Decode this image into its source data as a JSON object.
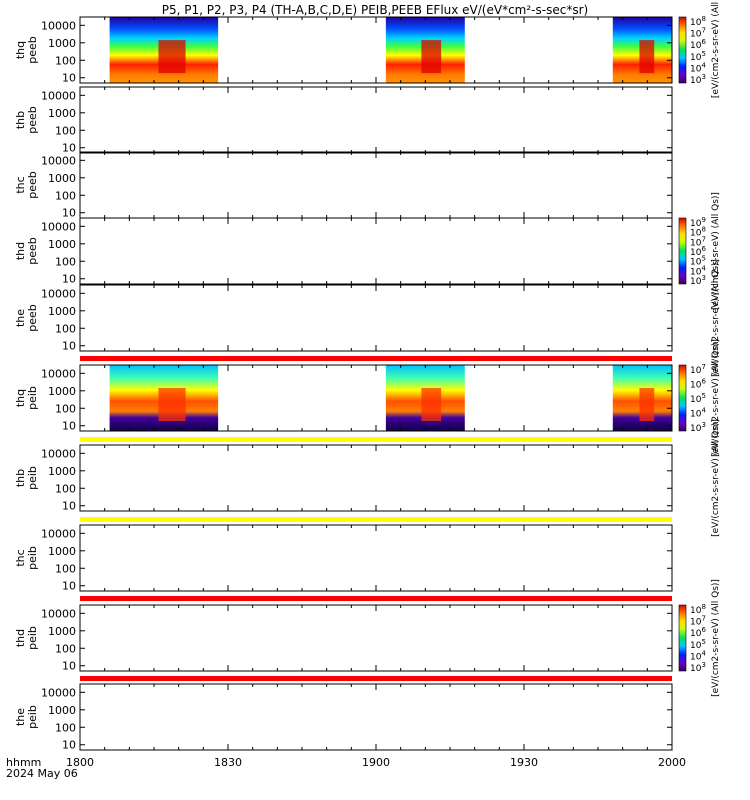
{
  "title": "P5, P1, P2, P3, P4 (TH-A,B,C,D,E) PEIB,PEEB EFlux eV/(eV*cm²-s-sec*sr)",
  "time_axis": {
    "label_line1": "hhmm",
    "label_line2": "2024 May 06",
    "ticks": [
      "1800",
      "1830",
      "1900",
      "1930",
      "2000"
    ],
    "tick_minutes": [
      0,
      30,
      60,
      90,
      120
    ]
  },
  "y_ticks": [
    "10000",
    "1000",
    "100",
    "10"
  ],
  "y_tick_values": [
    10000,
    1000,
    100,
    10
  ],
  "colorbars": [
    {
      "panel": 0,
      "label": "[eV/(cm2-s-sr-eV) (All",
      "ticks": [
        "10^8",
        "10^7",
        "10^6",
        "10^5",
        "10^4",
        "10^3"
      ]
    },
    {
      "panel": 3,
      "label": "[eV/(cm2-s-sr-eV) (All Qs)]",
      "ticks": [
        "10^9",
        "10^8",
        "10^7",
        "10^6",
        "10^5",
        "10^4",
        "10^3"
      ]
    },
    {
      "panel": 5,
      "label": "[eV/(cm2-s-sr-eV) (All Qs)]",
      "ticks": [
        "10^7",
        "10^6",
        "10^5",
        "10^4",
        "10^3"
      ]
    },
    {
      "panel": 8,
      "label": "[eV/(cm2-s-sr-eV) (All Qs)]",
      "ticks": [
        "10^8",
        "10^7",
        "10^6",
        "10^5",
        "10^4",
        "10^3"
      ]
    }
  ],
  "stray_labels": [
    {
      "panel": 4,
      "text": "[eV/(cm2-s-sr-eV) (All Qs)]"
    },
    {
      "panel": 6,
      "text": "[eV/(cm2-s-sr-eV) (All Qs)]"
    }
  ],
  "chart_data": {
    "type": "heatmap",
    "title": "P5, P1, P2, P3, P4 (TH-A,B,C,D,E) PEIB,PEEB EFlux eV/(eV*cm²-s-sec*sr)",
    "xlabel": "hhmm",
    "x_range": [
      "1800",
      "2000"
    ],
    "y_scale": "log",
    "y_range": [
      5,
      30000
    ],
    "panels": [
      {
        "label": [
          "thq",
          "peeb"
        ],
        "data_intervals": [
          [
            1806,
            1828
          ],
          [
            1902,
            1918
          ],
          [
            1948,
            2000
          ]
        ]
      },
      {
        "label": [
          "thb",
          "peeb"
        ],
        "data_intervals": []
      },
      {
        "label": [
          "thc",
          "peeb"
        ],
        "data_intervals": []
      },
      {
        "label": [
          "thd",
          "peeb"
        ],
        "data_intervals": []
      },
      {
        "label": [
          "the",
          "peeb"
        ],
        "data_intervals": []
      },
      {
        "label": [
          "thq",
          "peib"
        ],
        "data_intervals": [
          [
            1806,
            1828
          ],
          [
            1902,
            1918
          ],
          [
            1948,
            2000
          ]
        ]
      },
      {
        "label": [
          "thb",
          "peib"
        ],
        "data_intervals": []
      },
      {
        "label": [
          "thc",
          "peib"
        ],
        "data_intervals": []
      },
      {
        "label": [
          "thd",
          "peib"
        ],
        "data_intervals": []
      },
      {
        "label": [
          "the",
          "peib"
        ],
        "data_intervals": []
      }
    ],
    "flag_bars": [
      {
        "after_panel": 4,
        "color": "#ff0000"
      },
      {
        "after_panel": 5,
        "color": "#ffff00"
      },
      {
        "after_panel": 6,
        "color": "#ffff00"
      },
      {
        "after_panel": 7,
        "color": "#ff0000"
      },
      {
        "after_panel": 8,
        "color": "#ff0000"
      }
    ]
  }
}
